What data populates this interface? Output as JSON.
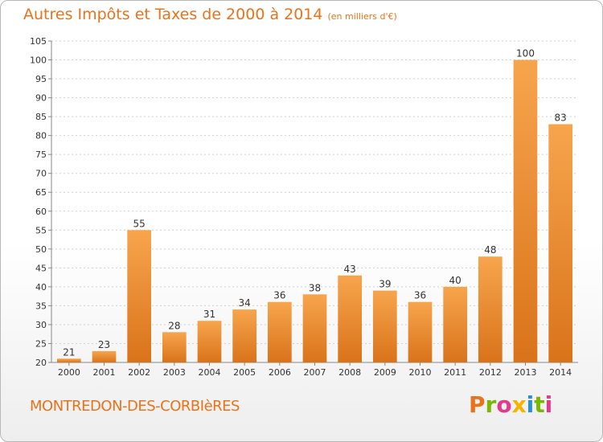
{
  "header": {
    "title": "Autres Impôts et Taxes de 2000 à 2014",
    "unit": "(en milliers d'€)"
  },
  "footer": {
    "town": "MONTREDON-DES-CORBIèRES",
    "brand": "Proxiti",
    "brand_colors": [
      "#e8731a",
      "#7ab800",
      "#e23b8a",
      "#f4b400",
      "#2a8fd6",
      "#7ab800",
      "#e23b8a"
    ]
  },
  "colors": {
    "accent": "#e8731a",
    "bar_light": "#f7a54d",
    "bar_dark": "#d9731a",
    "grid": "#d0d0d0"
  },
  "chart_data": {
    "type": "bar",
    "title": "Autres Impôts et Taxes de 2000 à 2014",
    "subtitle": "(en milliers d'€)",
    "categories": [
      "2000",
      "2001",
      "2002",
      "2003",
      "2004",
      "2005",
      "2006",
      "2007",
      "2008",
      "2009",
      "2010",
      "2011",
      "2012",
      "2013",
      "2014"
    ],
    "values": [
      21,
      23,
      55,
      28,
      31,
      34,
      36,
      38,
      43,
      39,
      36,
      40,
      48,
      100,
      83
    ],
    "ylim": [
      20,
      105
    ],
    "yticks": [
      20,
      25,
      30,
      35,
      40,
      45,
      50,
      55,
      60,
      65,
      70,
      75,
      80,
      85,
      90,
      95,
      100,
      105
    ],
    "grid": true,
    "legend": "none"
  }
}
